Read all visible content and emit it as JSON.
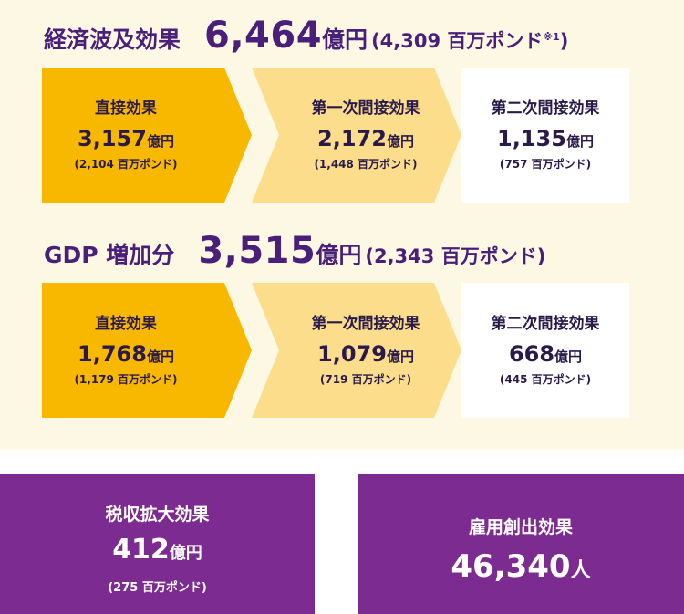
{
  "economic_ripple": {
    "label": "経済波及効果",
    "value": "6,464",
    "unit": "億円",
    "sub": "(4,309 百万ポンド",
    "note": "※1",
    "close": ")",
    "boxes": [
      {
        "title": "直接効果",
        "value": "3,157",
        "unit": "億円",
        "sub": "(2,104 百万ポンド)"
      },
      {
        "title": "第一次間接効果",
        "value": "2,172",
        "unit": "億円",
        "sub": "(1,448 百万ポンド)"
      },
      {
        "title": "第二次間接効果",
        "value": "1,135",
        "unit": "億円",
        "sub": "(757 百万ポンド)"
      }
    ]
  },
  "gdp_increase": {
    "label": "GDP 増加分",
    "value": "3,515",
    "unit": "億円",
    "sub": "(2,343 百万ポンド)",
    "boxes": [
      {
        "title": "直接効果",
        "value": "1,768",
        "unit": "億円",
        "sub": "(1,179 百万ポンド)"
      },
      {
        "title": "第一次間接効果",
        "value": "1,079",
        "unit": "億円",
        "sub": "(719 百万ポンド)"
      },
      {
        "title": "第二次間接効果",
        "value": "668",
        "unit": "億円",
        "sub": "(445 百万ポンド)"
      }
    ]
  },
  "tax_revenue": {
    "title": "税収拡大効果",
    "value": "412",
    "unit": "億円",
    "sub": "(275 百万ポンド)"
  },
  "employment": {
    "title": "雇用創出効果",
    "value": "46,340",
    "unit": "人"
  },
  "colors": {
    "heading": "#4a1f7a",
    "box_dark": "#f8b800",
    "box_light": "#fbdd8c",
    "box_white": "#ffffff",
    "purple": "#7c2b91",
    "panel_bg": "#fdf8e3"
  }
}
